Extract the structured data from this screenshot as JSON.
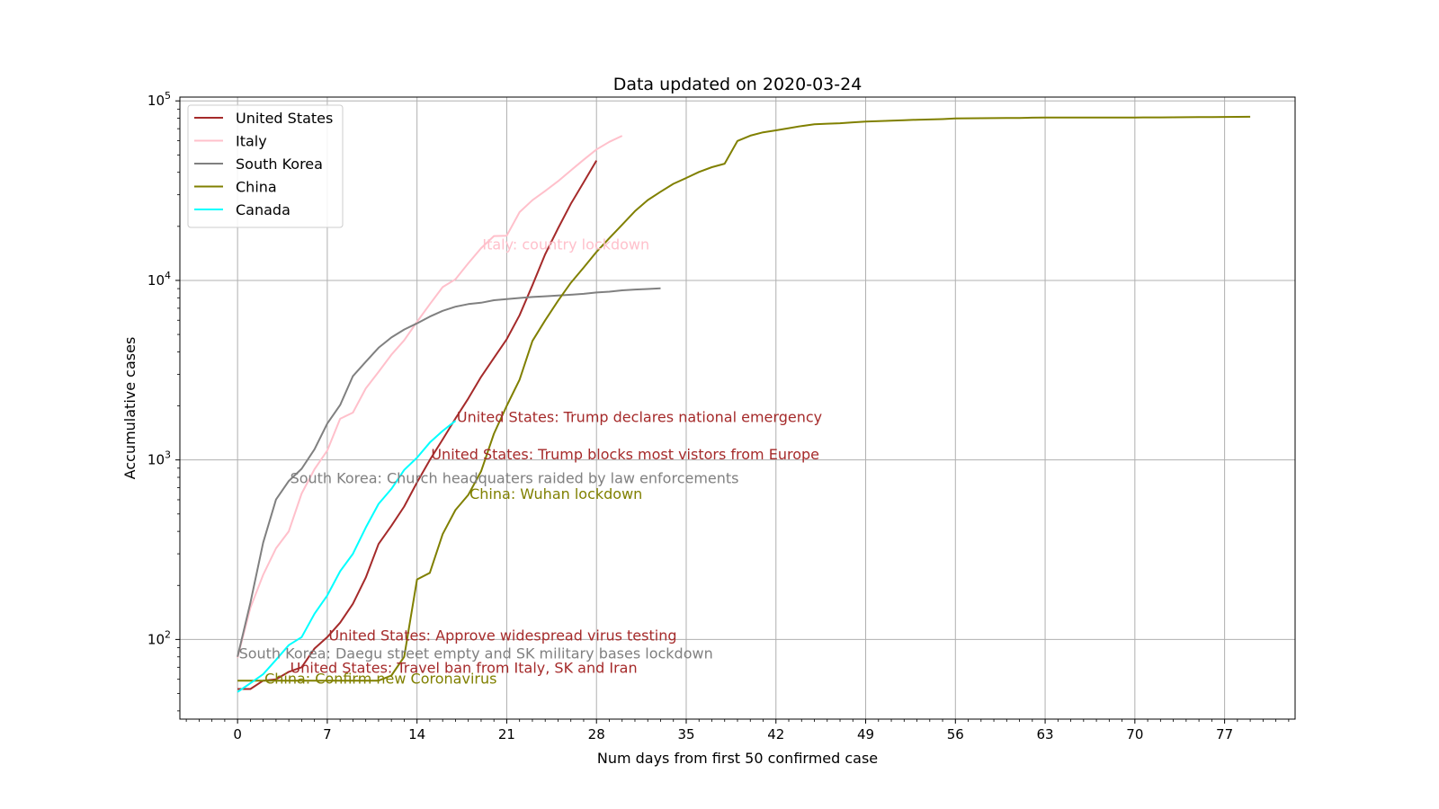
{
  "chart_data": {
    "type": "line",
    "title": "Data updated on 2020-03-24",
    "xlabel": "Num days from first 50 confirmed case",
    "ylabel": "Accumulative cases",
    "xlim": [
      -4.5,
      82.5
    ],
    "ylim": [
      36,
      105000
    ],
    "yscale": "log",
    "grid": true,
    "legend_position": "upper-left",
    "x_ticks": [
      0,
      7,
      14,
      21,
      28,
      35,
      42,
      49,
      56,
      63,
      70,
      77
    ],
    "y_ticks": [
      {
        "value": 100,
        "base": "10",
        "exp": "2"
      },
      {
        "value": 1000,
        "base": "10",
        "exp": "3"
      },
      {
        "value": 10000,
        "base": "10",
        "exp": "4"
      },
      {
        "value": 100000,
        "base": "10",
        "exp": "5"
      }
    ],
    "series": [
      {
        "name": "United States",
        "color": "#a52a2a",
        "x": [
          0,
          1,
          2,
          3,
          4,
          5,
          6,
          7,
          8,
          9,
          10,
          11,
          12,
          13,
          14,
          15,
          16,
          17,
          18,
          19,
          20,
          21,
          22,
          23,
          24,
          25,
          26,
          27,
          28
        ],
        "y": [
          53,
          53,
          59,
          60,
          66,
          70,
          89,
          103,
          124,
          158,
          221,
          340,
          430,
          550,
          750,
          1000,
          1300,
          1700,
          2200,
          2900,
          3700,
          4700,
          6400,
          9400,
          14000,
          19500,
          26700,
          35200,
          46500
        ]
      },
      {
        "name": "Italy",
        "color": "#ffc0cb",
        "x": [
          0,
          1,
          2,
          3,
          4,
          5,
          6,
          7,
          8,
          9,
          10,
          11,
          12,
          13,
          14,
          15,
          16,
          17,
          18,
          19,
          20,
          21,
          22,
          23,
          24,
          25,
          26,
          27,
          28,
          29,
          30
        ],
        "y": [
          79,
          150,
          229,
          322,
          400,
          650,
          888,
          1128,
          1694,
          1835,
          2502,
          3089,
          3858,
          4636,
          5883,
          7375,
          9172,
          10149,
          12462,
          15113,
          17660,
          17750,
          24000,
          27980,
          31500,
          35700,
          41000,
          47000,
          53600,
          59100,
          63900
        ]
      },
      {
        "name": "South Korea",
        "color": "#808080",
        "x": [
          0,
          1,
          2,
          3,
          4,
          5,
          6,
          7,
          8,
          9,
          10,
          11,
          12,
          13,
          14,
          15,
          16,
          17,
          18,
          19,
          20,
          21,
          22,
          23,
          24,
          25,
          26,
          27,
          28,
          29,
          30,
          31,
          32,
          33
        ],
        "y": [
          80,
          160,
          346,
          602,
          763,
          893,
          1146,
          1595,
          2022,
          2931,
          3526,
          4212,
          4812,
          5328,
          5766,
          6284,
          6767,
          7134,
          7382,
          7513,
          7755,
          7869,
          7979,
          8086,
          8162,
          8236,
          8320,
          8413,
          8565,
          8652,
          8799,
          8897,
          8961,
          9037
        ]
      },
      {
        "name": "China",
        "color": "#808000",
        "x": [
          0,
          1,
          2,
          3,
          4,
          5,
          6,
          7,
          8,
          9,
          10,
          11,
          12,
          13,
          14,
          15,
          16,
          17,
          18,
          19,
          20,
          21,
          22,
          23,
          24,
          25,
          26,
          27,
          28,
          29,
          30,
          31,
          32,
          33,
          34,
          35,
          36,
          37,
          38,
          39,
          40,
          41,
          42,
          43,
          44,
          45,
          46,
          47,
          48,
          49,
          50,
          51,
          52,
          53,
          54,
          55,
          56,
          57,
          58,
          59,
          60,
          61,
          62,
          63,
          64,
          65,
          66,
          67,
          68,
          69,
          70,
          71,
          72,
          73,
          74,
          75,
          76,
          77,
          78,
          79
        ],
        "y": [
          59,
          59,
          59,
          59,
          59,
          59,
          59,
          59,
          59,
          59,
          59,
          59,
          63,
          80,
          216,
          235,
          386,
          526,
          639,
          863,
          1400,
          2000,
          2800,
          4600,
          6000,
          7700,
          9700,
          11800,
          14400,
          17200,
          20400,
          24300,
          28000,
          31200,
          34500,
          37200,
          40200,
          42700,
          44700,
          59800,
          64000,
          66800,
          68500,
          70500,
          72400,
          74100,
          74600,
          75100,
          75900,
          76700,
          77100,
          77500,
          78000,
          78500,
          78800,
          79200,
          79800,
          80000,
          80100,
          80200,
          80300,
          80400,
          80600,
          80700,
          80700,
          80700,
          80800,
          80800,
          80800,
          80800,
          80800,
          80900,
          80900,
          81000,
          81100,
          81200,
          81300,
          81400,
          81500,
          81600
        ]
      },
      {
        "name": "Canada",
        "color": "#00ffff",
        "x": [
          0,
          1,
          2,
          3,
          4,
          5,
          6,
          7,
          8,
          9,
          10,
          11,
          12,
          13,
          14,
          15,
          16,
          17
        ],
        "y": [
          51,
          57,
          64,
          77,
          93,
          103,
          139,
          176,
          240,
          300,
          420,
          569,
          690,
          880,
          1030,
          1250,
          1450,
          1650
        ]
      }
    ],
    "annotations": [
      {
        "text": "Italy: country lockdown",
        "x": 19.1,
        "y": 15900,
        "color": "#ffc0cb"
      },
      {
        "text": "United States: Trump declares national emergency",
        "x": 17.1,
        "y": 1740,
        "color": "#a52a2a"
      },
      {
        "text": "United States: Trump blocks most vistors from Europe",
        "x": 15.1,
        "y": 1080,
        "color": "#a52a2a"
      },
      {
        "text": "South Korea: Church headquaters raided by law enforcements",
        "x": 4.1,
        "y": 796,
        "color": "#808080"
      },
      {
        "text": "China: Wuhan lockdown",
        "x": 18.1,
        "y": 652,
        "color": "#808000"
      },
      {
        "text": "United States: Approve widespread virus testing",
        "x": 7.1,
        "y": 106,
        "color": "#a52a2a"
      },
      {
        "text": "South Korea: Daegu street empty and SK military bases lockdown",
        "x": 0.1,
        "y": 84,
        "color": "#808080"
      },
      {
        "text": "United States: Travel ban from Italy, SK and Iran",
        "x": 4.1,
        "y": 70,
        "color": "#a52a2a"
      },
      {
        "text": "China: Confirm new Coronavirus",
        "x": 2.1,
        "y": 61,
        "color": "#808000"
      }
    ]
  }
}
